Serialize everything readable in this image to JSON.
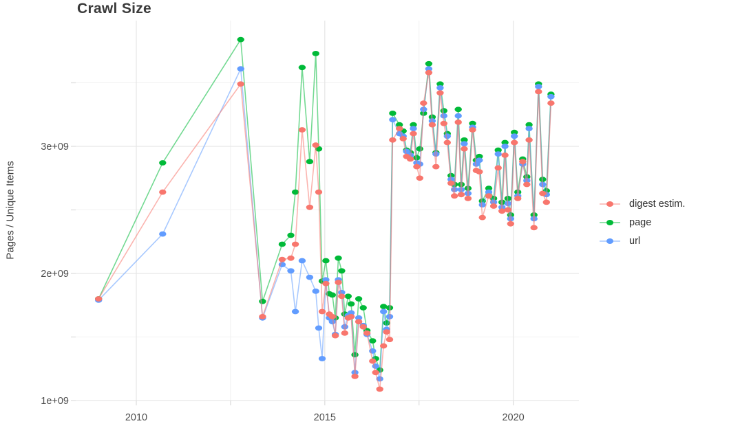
{
  "chart_data": {
    "type": "line",
    "title": "Crawl Size",
    "xlabel": "",
    "ylabel": "Pages / Unique Items",
    "grid": true,
    "legend_position": "right",
    "x_unit": "year",
    "values_scale": "1e9 (values below are in billions)",
    "xlim": [
      2008.39,
      2021.74
    ],
    "ylim": [
      1.0,
      3.99
    ],
    "x_major_ticks": [
      {
        "value": 2010,
        "label": "2010"
      },
      {
        "value": 2015,
        "label": "2015"
      },
      {
        "value": 2020,
        "label": "2020"
      }
    ],
    "x_minor_ticks": [
      2012.5,
      2017.5
    ],
    "y_major_ticks": [
      {
        "value": 1.0,
        "label": "1e+09"
      },
      {
        "value": 2.0,
        "label": "2e+09"
      },
      {
        "value": 3.0,
        "label": "3e+09"
      }
    ],
    "y_minor_ticks": [
      1.5,
      2.5,
      3.5
    ],
    "x": [
      2009.0,
      2010.7,
      2012.77,
      2013.35,
      2013.87,
      2014.1,
      2014.22,
      2014.4,
      2014.6,
      2014.76,
      2014.84,
      2014.93,
      2015.03,
      2015.12,
      2015.2,
      2015.28,
      2015.36,
      2015.45,
      2015.53,
      2015.62,
      2015.7,
      2015.8,
      2015.9,
      2016.02,
      2016.12,
      2016.27,
      2016.35,
      2016.46,
      2016.56,
      2016.64,
      2016.72,
      2016.8,
      2016.98,
      2017.08,
      2017.17,
      2017.27,
      2017.35,
      2017.44,
      2017.52,
      2017.62,
      2017.76,
      2017.85,
      2017.95,
      2018.06,
      2018.16,
      2018.25,
      2018.35,
      2018.44,
      2018.54,
      2018.62,
      2018.7,
      2018.8,
      2018.92,
      2019.02,
      2019.1,
      2019.18,
      2019.35,
      2019.48,
      2019.6,
      2019.7,
      2019.78,
      2019.86,
      2019.93,
      2020.03,
      2020.12,
      2020.25,
      2020.36,
      2020.42,
      2020.55,
      2020.67,
      2020.78,
      2020.88,
      2021.0
    ],
    "draw_order": [
      "page",
      "url",
      "digest estim."
    ],
    "series": [
      {
        "name": "digest estim.",
        "slug": "digest-estim",
        "color": "#F8766D",
        "values": [
          1.8,
          2.64,
          3.49,
          1.66,
          2.11,
          2.12,
          2.23,
          3.13,
          2.52,
          3.01,
          2.64,
          1.7,
          1.92,
          1.68,
          1.66,
          1.51,
          1.93,
          1.82,
          1.53,
          1.65,
          1.66,
          1.19,
          1.62,
          1.58,
          1.53,
          1.31,
          1.22,
          1.09,
          1.43,
          1.54,
          1.48,
          3.05,
          3.14,
          3.06,
          2.92,
          2.9,
          3.1,
          2.84,
          2.75,
          3.34,
          3.58,
          3.17,
          2.84,
          3.42,
          3.18,
          3.03,
          2.71,
          2.61,
          3.19,
          2.62,
          2.98,
          2.59,
          3.13,
          2.81,
          2.8,
          2.44,
          2.61,
          2.53,
          2.83,
          2.49,
          2.93,
          2.5,
          2.39,
          3.03,
          2.59,
          2.88,
          2.7,
          3.05,
          2.36,
          3.43,
          2.63,
          2.56,
          3.34
        ]
      },
      {
        "name": "page",
        "slug": "page",
        "color": "#00BA38",
        "values": [
          1.8,
          2.87,
          3.84,
          1.78,
          2.23,
          2.3,
          2.64,
          3.62,
          2.88,
          3.73,
          2.98,
          1.94,
          2.1,
          1.84,
          1.83,
          1.65,
          2.12,
          2.02,
          1.68,
          1.82,
          1.76,
          1.36,
          1.8,
          1.73,
          1.55,
          1.47,
          1.33,
          1.24,
          1.74,
          1.61,
          1.73,
          3.26,
          3.17,
          3.12,
          2.97,
          2.95,
          3.17,
          2.91,
          2.98,
          3.26,
          3.65,
          3.23,
          2.95,
          3.49,
          3.28,
          3.1,
          2.77,
          2.7,
          3.29,
          2.7,
          3.05,
          2.67,
          3.18,
          2.89,
          2.92,
          2.57,
          2.67,
          2.59,
          2.97,
          2.56,
          3.03,
          2.59,
          2.46,
          3.11,
          2.64,
          2.9,
          2.76,
          3.17,
          2.46,
          3.49,
          2.74,
          2.65,
          3.41
        ]
      },
      {
        "name": "url",
        "slug": "url",
        "color": "#619CFF",
        "values": [
          1.79,
          2.31,
          3.61,
          1.65,
          2.07,
          2.02,
          1.7,
          2.1,
          1.97,
          1.86,
          1.57,
          1.33,
          1.95,
          1.65,
          1.62,
          1.52,
          1.95,
          1.85,
          1.58,
          1.67,
          1.69,
          1.22,
          1.65,
          1.59,
          1.52,
          1.39,
          1.27,
          1.17,
          1.7,
          1.56,
          1.66,
          3.21,
          3.1,
          3.08,
          2.96,
          2.93,
          3.14,
          2.87,
          2.86,
          3.29,
          3.61,
          3.2,
          2.94,
          3.46,
          3.24,
          3.08,
          2.74,
          2.66,
          3.24,
          2.66,
          3.02,
          2.63,
          3.15,
          2.86,
          2.89,
          2.54,
          2.64,
          2.56,
          2.94,
          2.52,
          3.0,
          2.55,
          2.43,
          3.08,
          2.61,
          2.86,
          2.73,
          3.14,
          2.43,
          3.47,
          2.7,
          2.62,
          3.39
        ]
      }
    ]
  }
}
